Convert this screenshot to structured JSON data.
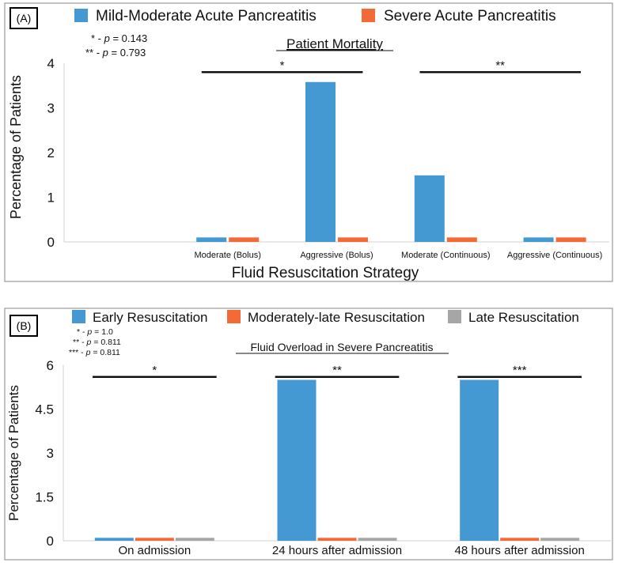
{
  "chart_data": [
    {
      "type": "bar",
      "panel_label": "(A)",
      "title": "Patient Mortality",
      "xlabel": "Fluid Resuscitation Strategy",
      "ylabel": "Percentage of Patients",
      "ylim": [
        0,
        4
      ],
      "yticks": [
        "0",
        "1",
        "2",
        "3",
        "4"
      ],
      "grid": false,
      "legend_position": "top",
      "categories": [
        "",
        "Moderate (Bolus)",
        "Aggressive (Bolus)",
        "Moderate (Continuous)",
        "Aggressive (Continuous)"
      ],
      "series": [
        {
          "name": "Mild-Moderate Acute Pancreatitis",
          "color": "#4499d3",
          "values": [
            null,
            0.1,
            3.58,
            1.49,
            0.1
          ]
        },
        {
          "name": "Severe Acute Pancreatitis",
          "color": "#f26b37",
          "values": [
            null,
            0.1,
            0.1,
            0.1,
            0.1
          ]
        }
      ],
      "p_values": [
        {
          "mark": "*",
          "prefix": "* - ",
          "p": "p",
          "value": " = 0.143"
        },
        {
          "mark": "**",
          "prefix": "** - ",
          "p": "p",
          "value": " = 0.793"
        }
      ],
      "significance_bars": [
        {
          "label": "*",
          "from": 1,
          "to": 2,
          "y": 3.8
        },
        {
          "label": "**",
          "from": 3,
          "to": 4,
          "y": 3.8
        }
      ]
    },
    {
      "type": "bar",
      "panel_label": "(B)",
      "title": "Fluid Overload in Severe Pancreatitis",
      "xlabel": "",
      "ylabel": "Percentage of Patients",
      "ylim": [
        0,
        6
      ],
      "yticks": [
        "0",
        "1.5",
        "3",
        "4.5",
        "6"
      ],
      "grid": false,
      "legend_position": "top",
      "categories": [
        "On admission",
        "24 hours after admission",
        "48 hours after admission"
      ],
      "series": [
        {
          "name": "Early Resuscitation",
          "color": "#4499d3",
          "values": [
            0.1,
            5.5,
            5.5
          ]
        },
        {
          "name": "Moderately-late Resuscitation",
          "color": "#f26b37",
          "values": [
            0.1,
            0.1,
            0.1
          ]
        },
        {
          "name": "Late Resuscitation",
          "color": "#a6a6a6",
          "values": [
            0.1,
            0.1,
            0.1
          ]
        }
      ],
      "p_values": [
        {
          "mark": "*",
          "prefix": "* - ",
          "p": "p",
          "value": " = 1.0"
        },
        {
          "mark": "**",
          "prefix": "** - ",
          "p": "p",
          "value": " = 0.811"
        },
        {
          "mark": "***",
          "prefix": "*** - ",
          "p": "p",
          "value": " = 0.811"
        }
      ],
      "significance_bars": [
        {
          "label": "*",
          "from": 0,
          "to": 0,
          "y": 5.6
        },
        {
          "label": "**",
          "from": 1,
          "to": 1,
          "y": 5.6
        },
        {
          "label": "***",
          "from": 2,
          "to": 2,
          "y": 5.6
        }
      ]
    }
  ]
}
